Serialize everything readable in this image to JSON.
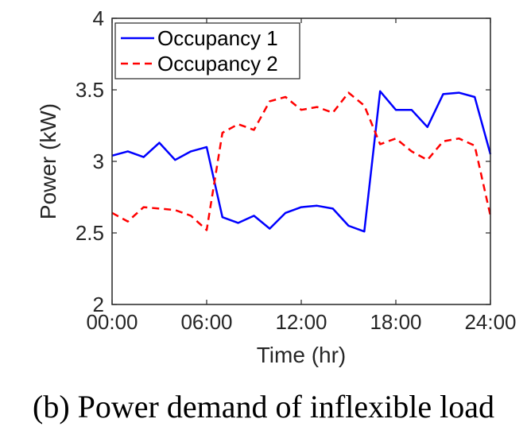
{
  "caption": "(b) Power demand of inflexible load",
  "chart_data": {
    "type": "line",
    "xlabel": "Time (hr)",
    "ylabel": "Power (kW)",
    "xlim": [
      0,
      24
    ],
    "ylim": [
      2,
      4
    ],
    "xticks": [
      0,
      6,
      12,
      18,
      24
    ],
    "xtick_labels": [
      "00:00",
      "06:00",
      "12:00",
      "18:00",
      "24:00"
    ],
    "yticks": [
      2,
      2.5,
      3,
      3.5,
      4
    ],
    "ytick_labels": [
      "2",
      "2.5",
      "3",
      "3.5",
      "4"
    ],
    "grid": false,
    "legend_position": "top-left",
    "x": [
      0,
      1,
      2,
      3,
      4,
      5,
      6,
      7,
      8,
      9,
      10,
      11,
      12,
      13,
      14,
      15,
      16,
      17,
      18,
      19,
      20,
      21,
      22,
      23,
      24
    ],
    "series": [
      {
        "name": "Occupancy 1",
        "color": "#0000ff",
        "style": "solid",
        "values": [
          3.04,
          3.07,
          3.03,
          3.13,
          3.01,
          3.07,
          3.1,
          2.61,
          2.57,
          2.62,
          2.53,
          2.64,
          2.68,
          2.69,
          2.67,
          2.55,
          2.51,
          3.49,
          3.36,
          3.36,
          3.24,
          3.47,
          3.48,
          3.45,
          3.05
        ]
      },
      {
        "name": "Occupancy 2",
        "color": "#ff0000",
        "style": "dashed",
        "values": [
          2.64,
          2.58,
          2.68,
          2.67,
          2.66,
          2.62,
          2.52,
          3.2,
          3.26,
          3.22,
          3.42,
          3.45,
          3.36,
          3.38,
          3.34,
          3.48,
          3.39,
          3.12,
          3.16,
          3.07,
          3.01,
          3.14,
          3.16,
          3.11,
          2.62
        ]
      }
    ]
  }
}
